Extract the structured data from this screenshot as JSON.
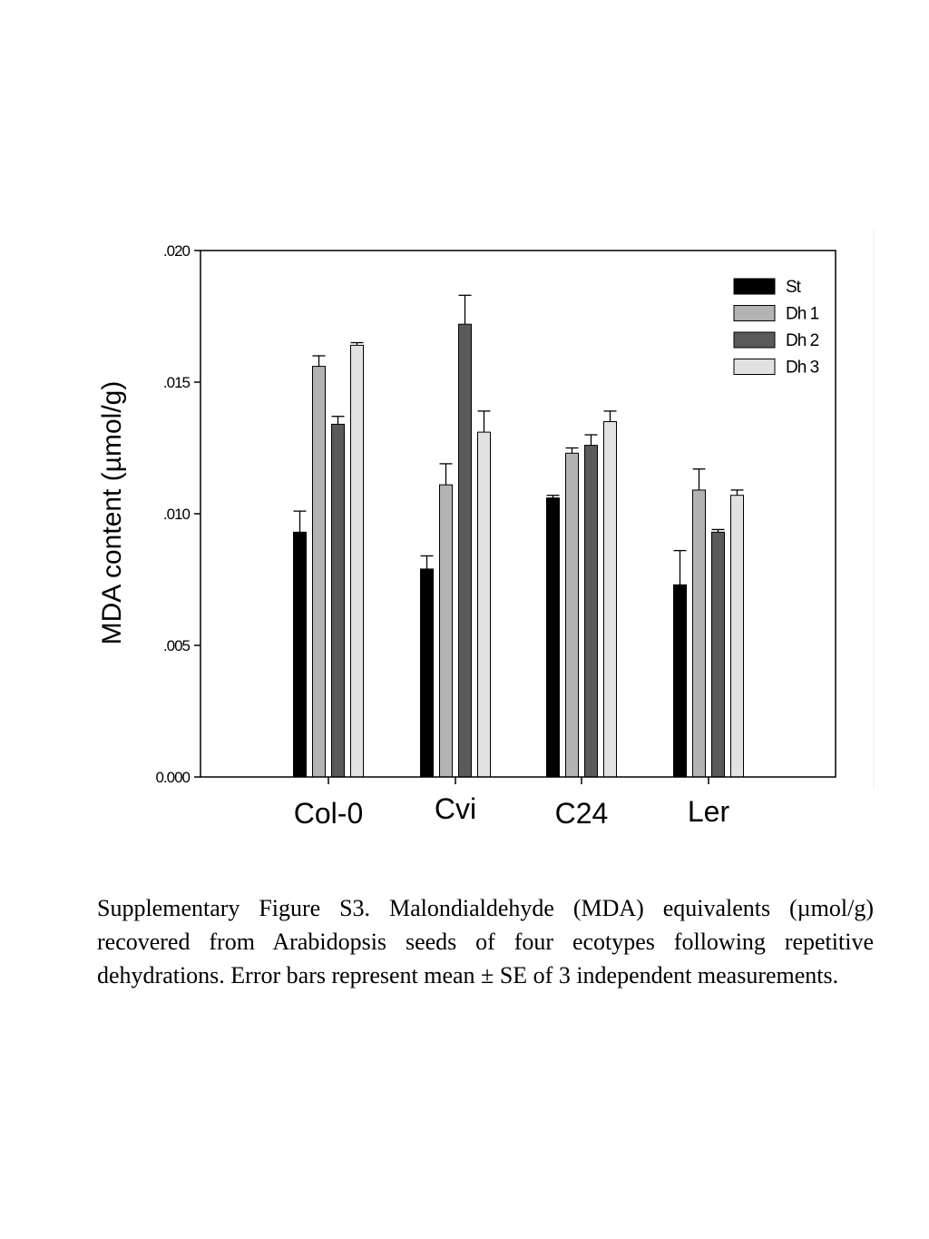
{
  "chart_data": {
    "type": "bar",
    "ylabel": "MDA content (µmol/g)",
    "xlabel": "",
    "ylim": [
      0,
      0.02
    ],
    "yticks": [
      {
        "value": 0,
        "label": "0.000"
      },
      {
        "value": 0.005,
        "label": ".005"
      },
      {
        "value": 0.01,
        "label": ".010"
      },
      {
        "value": 0.015,
        "label": ".015"
      },
      {
        "value": 0.02,
        "label": ".020"
      }
    ],
    "categories": [
      "Col-0",
      "Cvi",
      "C24",
      "Ler"
    ],
    "legend_position": "top-right",
    "grid": false,
    "series": [
      {
        "name": "St",
        "color": "#000000",
        "values": [
          0.0093,
          0.0079,
          0.0106,
          0.0073
        ],
        "errors": [
          0.0008,
          0.0005,
          0.0001,
          0.0013
        ]
      },
      {
        "name": "Dh 1",
        "color": "#b3b3b3",
        "values": [
          0.0156,
          0.0111,
          0.0123,
          0.0109
        ],
        "errors": [
          0.0004,
          0.0008,
          0.0002,
          0.0008
        ]
      },
      {
        "name": "Dh 2",
        "color": "#5a5a5a",
        "values": [
          0.0134,
          0.0172,
          0.0126,
          0.0093
        ],
        "errors": [
          0.0003,
          0.0011,
          0.0004,
          0.0001
        ]
      },
      {
        "name": "Dh 3",
        "color": "#e2e2e2",
        "values": [
          0.0164,
          0.0131,
          0.0135,
          0.0107
        ],
        "errors": [
          0.0001,
          0.0008,
          0.0004,
          0.0002
        ]
      }
    ]
  },
  "caption": "Supplementary Figure S3. Malondialdehyde (MDA) equivalents (µmol/g) recovered from Arabidopsis seeds of four ecotypes following repetitive dehydrations. Error bars represent mean ± SE of 3 independent measurements."
}
